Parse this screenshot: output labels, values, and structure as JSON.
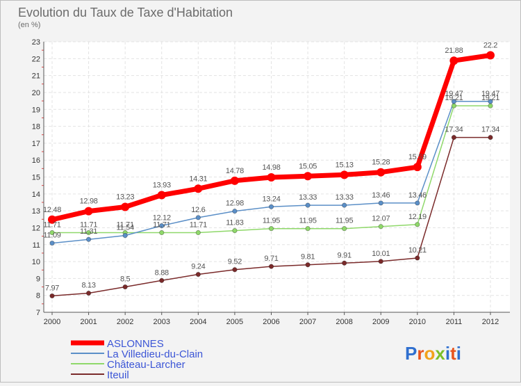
{
  "chart_data": {
    "type": "line",
    "title": "Evolution du Taux de Taxe d'Habitation",
    "subtitle": "(en %)",
    "xlabel": "",
    "ylabel": "",
    "x": [
      "2000",
      "2001",
      "2002",
      "2003",
      "2004",
      "2005",
      "2006",
      "2007",
      "2008",
      "2009",
      "2010",
      "2011",
      "2012"
    ],
    "ylim": [
      7,
      23
    ],
    "yticks": [
      "7",
      "8",
      "9",
      "10",
      "11",
      "12",
      "13",
      "14",
      "15",
      "16",
      "17",
      "18",
      "19",
      "20",
      "21",
      "22",
      "23"
    ],
    "grid": true,
    "legend_position": "bottom-left",
    "series": [
      {
        "name": "ASLONNES",
        "color": "#ff0000",
        "values": [
          12.48,
          12.98,
          13.23,
          13.93,
          14.31,
          14.78,
          14.98,
          15.05,
          15.13,
          15.28,
          15.59,
          21.88,
          22.2
        ],
        "labels": [
          "12.48",
          "12.98",
          "13.23",
          "13.93",
          "14.31",
          "14.78",
          "14.98",
          "15.05",
          "15.13",
          "15.28",
          "15.59",
          "21.88",
          "22.2"
        ]
      },
      {
        "name": "La Villedieu-du-Clain",
        "color": "#5b8fc7",
        "values": [
          11.09,
          11.31,
          11.54,
          12.12,
          12.6,
          12.98,
          13.24,
          13.33,
          13.33,
          13.46,
          13.46,
          19.47,
          19.47
        ],
        "labels": [
          "11.09",
          "11.31",
          "11.54",
          "12.12",
          "12.6",
          "12.98",
          "13.24",
          "13.33",
          "13.33",
          "13.46",
          "13.46",
          "19.47",
          "19.47"
        ]
      },
      {
        "name": "Château-Larcher",
        "color": "#8fd86a",
        "values": [
          11.71,
          11.71,
          11.71,
          11.71,
          11.71,
          11.83,
          11.95,
          11.95,
          11.95,
          12.07,
          12.19,
          19.21,
          19.21
        ],
        "labels": [
          "11.71",
          "11.71",
          "11.71",
          "11.71",
          "11.71",
          "11.83",
          "11.95",
          "11.95",
          "11.95",
          "12.07",
          "12.19",
          "19.21",
          "19.21"
        ]
      },
      {
        "name": "Iteuil",
        "color": "#7a2a2a",
        "values": [
          7.97,
          8.13,
          8.5,
          8.88,
          9.24,
          9.52,
          9.71,
          9.81,
          9.91,
          10.01,
          10.21,
          17.34,
          17.34
        ],
        "labels": [
          "7.97",
          "8.13",
          "8.5",
          "8.88",
          "9.24",
          "9.52",
          "9.71",
          "9.81",
          "9.91",
          "10.01",
          "10.21",
          "17.34",
          "17.34"
        ]
      }
    ]
  },
  "logo": {
    "text": "Proxiti"
  }
}
